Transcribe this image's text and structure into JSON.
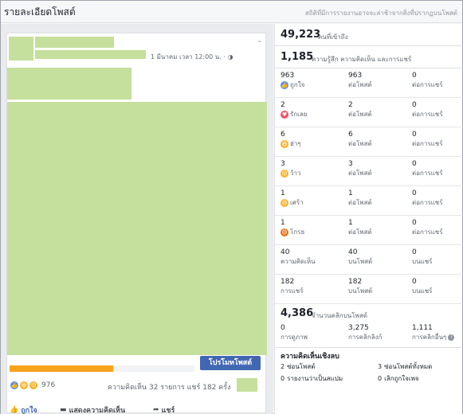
{
  "header": {
    "title": "รายละเอียดโพสต์",
    "subtitle": "สถิติที่มีการรายงานอาจจะล่าช้าจากสิ่งที่ปรากฏบนโพสต์"
  },
  "post": {
    "timestamp": "1 มีนาคม เวลา 12:00 น. · ",
    "reaction_count": "976",
    "comments_shares": "ความคิดเห็น 32 รายการ  แชร์ 182 ครั้ง",
    "boost_label": "โปรโมทโพสต์",
    "progress_fraction": 0.56
  },
  "actions": {
    "like": "ถูกใจ",
    "comment": "แสดงความคิดเห็น",
    "share": "แชร์"
  },
  "stats": {
    "reach_value": "49,223",
    "reach_label": "คนที่เข้าถึง",
    "engagement_value": "1,185",
    "engagement_label": "ความรู้สึก ความคิดเห็น และการแชร์",
    "rows": [
      {
        "icon": "like-icon",
        "c1n": "963",
        "c1l": "ถูกใจ",
        "c2n": "963",
        "c2l": "ต่อโพสต์",
        "c3n": "0",
        "c3l": "ต่อการแชร์"
      },
      {
        "icon": "love-icon",
        "c1n": "2",
        "c1l": "รักเลย",
        "c2n": "2",
        "c2l": "ต่อโพสต์",
        "c3n": "0",
        "c3l": "ต่อการแชร์"
      },
      {
        "icon": "haha-icon",
        "c1n": "6",
        "c1l": "ฮ่าๆ",
        "c2n": "6",
        "c2l": "ต่อโพสต์",
        "c3n": "0",
        "c3l": "ต่อการแชร์"
      },
      {
        "icon": "wow-icon",
        "c1n": "3",
        "c1l": "ว้าว",
        "c2n": "3",
        "c2l": "ต่อโพสต์",
        "c3n": "0",
        "c3l": "ต่อการแชร์"
      },
      {
        "icon": "sad-icon",
        "c1n": "1",
        "c1l": "เศร้า",
        "c2n": "1",
        "c2l": "ต่อโพสต์",
        "c3n": "0",
        "c3l": "ต่อการแชร์"
      },
      {
        "icon": "angry-icon",
        "c1n": "1",
        "c1l": "โกรธ",
        "c2n": "1",
        "c2l": "ต่อโพสต์",
        "c3n": "0",
        "c3l": "ต่อการแชร์"
      },
      {
        "icon": "",
        "c1n": "40",
        "c1l": "ความคิดเห็น",
        "c2n": "40",
        "c2l": "บนโพสต์",
        "c3n": "0",
        "c3l": "บนแชร์"
      },
      {
        "icon": "",
        "c1n": "182",
        "c1l": "การแชร์",
        "c2n": "182",
        "c2l": "บนโพสต์",
        "c3n": "0",
        "c3l": "บนแชร์"
      }
    ],
    "clicks_value": "4,386",
    "clicks_label": "จำนวนคลิกบนโพสต์",
    "clicks": [
      {
        "n": "0",
        "l": "การดูภาพ"
      },
      {
        "n": "3,275",
        "l": "การคลิกลิงก์"
      },
      {
        "n": "1,111",
        "l": "การคลิกอื่นๆ"
      }
    ],
    "negative_title": "ความคิดเห็นเชิงลบ",
    "negative": [
      {
        "n": "2",
        "l": "ซ่อนโพสต์"
      },
      {
        "n": "3",
        "l": "ซ่อนโพสต์ทั้งหมด"
      },
      {
        "n": "0",
        "l": "รายงานว่าเป็นสแปม"
      },
      {
        "n": "0",
        "l": "เลิกถูกใจเพจ"
      }
    ]
  }
}
